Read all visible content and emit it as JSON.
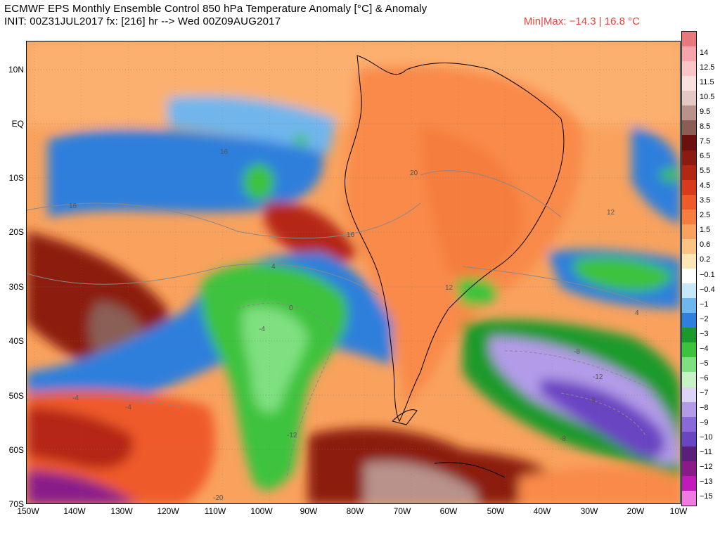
{
  "header": {
    "title_line1": "ECMWF EPS Monthly Ensemble Control 850 hPa Temperature Anomaly [°C] & Anomaly",
    "title_line2": "INIT: 00Z31JUL2017  fx: [216] hr --> Wed 00Z09AUG2017",
    "minmax": "Min|Max: −14.3 | 16.8 °C"
  },
  "map": {
    "lat_labels": [
      "10N",
      "EQ",
      "10S",
      "20S",
      "30S",
      "40S",
      "50S",
      "60S",
      "70S"
    ],
    "lon_labels": [
      "150W",
      "140W",
      "130W",
      "120W",
      "110W",
      "100W",
      "90W",
      "80W",
      "70W",
      "60W",
      "50W",
      "40W",
      "30W",
      "20W",
      "10W"
    ],
    "contour_labels": [
      "16",
      "16",
      "20",
      "16",
      "12",
      "12",
      "4",
      "0",
      "-4",
      "-4",
      "-4",
      "-8",
      "-8",
      "-12",
      "-12",
      "-8",
      "-20",
      "4"
    ]
  },
  "colorbar": {
    "levels": [
      {
        "label": "",
        "color": "#e8787c"
      },
      {
        "label": "14",
        "color": "#f5a5ab"
      },
      {
        "label": "12.5",
        "color": "#fbc4c6"
      },
      {
        "label": "11.5",
        "color": "#f7e0de"
      },
      {
        "label": "10.5",
        "color": "#e2c9c4"
      },
      {
        "label": "9.5",
        "color": "#b8928b"
      },
      {
        "label": "8.5",
        "color": "#8a5e55"
      },
      {
        "label": "7.5",
        "color": "#6b0f0f"
      },
      {
        "label": "6.5",
        "color": "#8c1a10"
      },
      {
        "label": "5.5",
        "color": "#b52715"
      },
      {
        "label": "4.5",
        "color": "#d93a1c"
      },
      {
        "label": "3.5",
        "color": "#ef5a2a"
      },
      {
        "label": "2.5",
        "color": "#f57d3d"
      },
      {
        "label": "1.5",
        "color": "#f9a25d"
      },
      {
        "label": "0.6",
        "color": "#fbc483"
      },
      {
        "label": "0.2",
        "color": "#fde6b5"
      },
      {
        "label": "−0.1",
        "color": "#ffffff"
      },
      {
        "label": "−0.4",
        "color": "#c7e8f7"
      },
      {
        "label": "−1",
        "color": "#6fb6ec"
      },
      {
        "label": "−2",
        "color": "#2f7fdc"
      },
      {
        "label": "−3",
        "color": "#1a9a2c"
      },
      {
        "label": "−4",
        "color": "#3cc33c"
      },
      {
        "label": "−5",
        "color": "#7fe07f"
      },
      {
        "label": "−6",
        "color": "#c6f2c6"
      },
      {
        "label": "−7",
        "color": "#ddd4f5"
      },
      {
        "label": "−8",
        "color": "#b39be8"
      },
      {
        "label": "−9",
        "color": "#8a6ad8"
      },
      {
        "label": "−10",
        "color": "#6a45c2"
      },
      {
        "label": "−11",
        "color": "#5a1f7a"
      },
      {
        "label": "−12",
        "color": "#8a1a8a"
      },
      {
        "label": "−13",
        "color": "#c01bb8"
      },
      {
        "label": "−15",
        "color": "#f07ae0"
      }
    ]
  }
}
